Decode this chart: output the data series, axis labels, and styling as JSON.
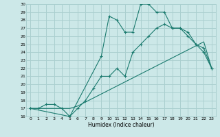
{
  "xlabel": "Humidex (Indice chaleur)",
  "bg_color": "#cce8e8",
  "grid_color": "#aacfcf",
  "line_color": "#1a7a6e",
  "xlim": [
    -0.5,
    23.5
  ],
  "ylim": [
    16,
    30
  ],
  "xticks": [
    0,
    1,
    2,
    3,
    4,
    5,
    6,
    7,
    8,
    9,
    10,
    11,
    12,
    13,
    14,
    15,
    16,
    17,
    18,
    19,
    20,
    21,
    22,
    23
  ],
  "yticks": [
    16,
    17,
    18,
    19,
    20,
    21,
    22,
    23,
    24,
    25,
    26,
    27,
    28,
    29,
    30
  ],
  "series1_x": [
    0,
    1,
    2,
    3,
    4,
    5,
    6,
    7,
    8,
    9,
    10,
    11,
    12,
    13,
    14,
    15,
    16,
    17,
    18,
    19,
    20,
    21,
    22,
    23
  ],
  "series1_y": [
    17,
    17,
    17.5,
    17.5,
    17,
    16,
    17,
    18,
    19.5,
    21,
    21,
    22,
    21,
    24,
    25,
    26,
    27,
    27.5,
    27,
    27,
    26.5,
    25,
    24,
    22
  ],
  "series2_x": [
    0,
    1,
    2,
    3,
    4,
    5,
    6,
    7,
    8,
    9,
    10,
    11,
    12,
    13,
    14,
    15,
    16,
    17,
    18,
    19,
    20,
    21,
    22,
    23
  ],
  "series2_y": [
    17,
    17,
    17,
    17,
    17,
    17,
    17.3,
    17.8,
    18.3,
    18.8,
    19.3,
    19.8,
    20.3,
    20.8,
    21.3,
    21.8,
    22.3,
    22.8,
    23.3,
    23.8,
    24.3,
    24.8,
    25.3,
    22
  ],
  "series3_x": [
    0,
    5,
    9,
    10,
    11,
    12,
    13,
    14,
    15,
    16,
    17,
    18,
    19,
    20,
    21,
    22,
    23
  ],
  "series3_y": [
    17,
    16,
    23.5,
    28.5,
    28,
    26.5,
    26.5,
    30,
    30,
    29,
    29,
    27,
    27,
    26,
    25,
    24.5,
    22
  ]
}
